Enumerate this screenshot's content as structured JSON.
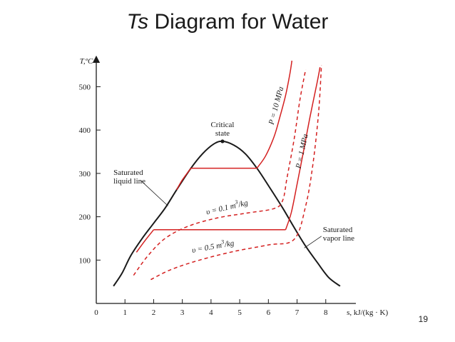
{
  "slide": {
    "title_italic": "Ts",
    "title_rest": " Diagram for Water",
    "page_number": "19"
  },
  "chart_data": {
    "type": "line",
    "xlabel": "s, kJ/(kg · K)",
    "ylabel": "T,ºC",
    "xlim": [
      0,
      9
    ],
    "ylim": [
      0,
      560
    ],
    "x_ticks": [
      0,
      1,
      2,
      3,
      4,
      5,
      6,
      7,
      8
    ],
    "y_ticks": [
      100,
      200,
      300,
      400,
      500
    ],
    "grid": false,
    "colors": {
      "dome": "#1a1a1a",
      "isolines": "#d42020"
    },
    "annotations": {
      "critical_state_line1": "Critical",
      "critical_state_line2": "state",
      "sat_liquid_line1": "Saturated",
      "sat_liquid_line2": "liquid line",
      "sat_vapor_line1": "Saturated",
      "sat_vapor_line2": "vapor line",
      "p_10mpa": "P = 10 MPa",
      "p_1mpa": "P = 1 MPa",
      "v_01_prefix": "υ = 0.1 m",
      "v_01_exp": "3",
      "v_01_suffix": "/kg",
      "v_05_prefix": "υ = 0.5 m",
      "v_05_exp": "3",
      "v_05_suffix": "/kg"
    },
    "series": [
      {
        "key": "saturation_dome",
        "style": "solid",
        "points": [
          [
            0.6,
            40
          ],
          [
            0.9,
            70
          ],
          [
            1.2,
            110
          ],
          [
            1.6,
            150
          ],
          [
            2.0,
            185
          ],
          [
            2.4,
            220
          ],
          [
            2.8,
            262
          ],
          [
            3.3,
            312
          ],
          [
            3.7,
            345
          ],
          [
            4.1,
            368
          ],
          [
            4.4,
            374
          ],
          [
            4.8,
            365
          ],
          [
            5.2,
            345
          ],
          [
            5.6,
            312
          ],
          [
            6.0,
            272
          ],
          [
            6.5,
            220
          ],
          [
            6.9,
            175
          ],
          [
            7.3,
            132
          ],
          [
            7.7,
            95
          ],
          [
            8.1,
            60
          ],
          [
            8.5,
            40
          ]
        ]
      },
      {
        "key": "p_10mpa",
        "style": "solid",
        "segments": [
          [
            [
              2.8,
              262
            ],
            [
              3.0,
              285
            ],
            [
              3.3,
              312
            ]
          ],
          [
            [
              3.3,
              312
            ],
            [
              5.6,
              312
            ]
          ],
          [
            [
              5.6,
              312
            ],
            [
              5.9,
              340
            ],
            [
              6.2,
              385
            ],
            [
              6.4,
              430
            ],
            [
              6.6,
              480
            ],
            [
              6.75,
              530
            ],
            [
              6.82,
              560
            ]
          ]
        ]
      },
      {
        "key": "p_1mpa",
        "style": "solid",
        "segments": [
          [
            [
              1.4,
              118
            ],
            [
              1.7,
              145
            ],
            [
              2.0,
              170
            ]
          ],
          [
            [
              2.0,
              170
            ],
            [
              6.6,
              170
            ]
          ],
          [
            [
              6.6,
              170
            ],
            [
              6.8,
              210
            ],
            [
              7.0,
              275
            ],
            [
              7.25,
              360
            ],
            [
              7.45,
              430
            ],
            [
              7.7,
              510
            ],
            [
              7.8,
              545
            ]
          ]
        ]
      },
      {
        "key": "v_0.1",
        "style": "dashed",
        "points": [
          [
            1.3,
            65
          ],
          [
            1.8,
            110
          ],
          [
            2.4,
            150
          ],
          [
            3.2,
            178
          ],
          [
            4.2,
            197
          ],
          [
            5.2,
            208
          ],
          [
            6.2,
            219
          ],
          [
            6.5,
            238
          ],
          [
            6.65,
            290
          ],
          [
            6.9,
            380
          ],
          [
            7.1,
            470
          ],
          [
            7.3,
            540
          ]
        ]
      },
      {
        "key": "v_0.5",
        "style": "dashed",
        "points": [
          [
            1.9,
            55
          ],
          [
            2.6,
            78
          ],
          [
            3.6,
            100
          ],
          [
            4.8,
            120
          ],
          [
            6.0,
            135
          ],
          [
            6.9,
            148
          ],
          [
            7.3,
            225
          ],
          [
            7.55,
            320
          ],
          [
            7.75,
            440
          ],
          [
            7.85,
            550
          ]
        ]
      }
    ]
  }
}
